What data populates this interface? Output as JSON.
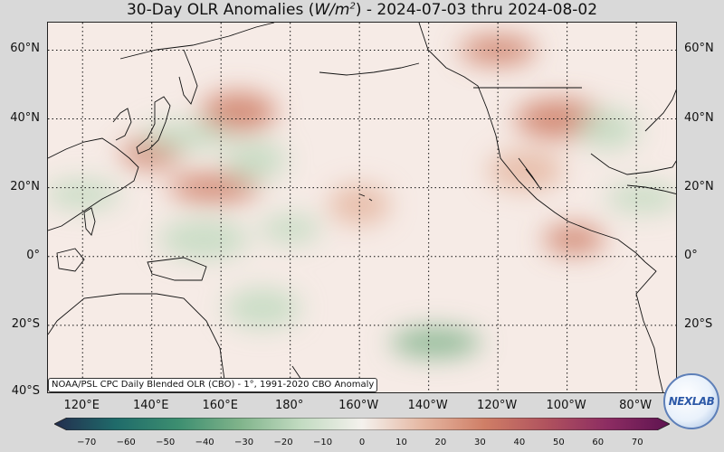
{
  "title": {
    "prefix": "30-Day OLR Anomalies (",
    "unit_base": "W/m",
    "unit_exp": "2",
    "suffix": ") - 2024-07-03 thru 2024-08-02"
  },
  "map": {
    "lat_labels": [
      "60°N",
      "40°N",
      "20°N",
      "0°",
      "20°S",
      "40°S"
    ],
    "lon_labels": [
      "120°E",
      "140°E",
      "160°E",
      "180°",
      "160°W",
      "140°W",
      "120°W",
      "100°W",
      "80°W"
    ],
    "anomaly_features": [
      {
        "lon": 140,
        "lat": 30,
        "value": 30
      },
      {
        "lon": 165,
        "lat": 42,
        "value": 25
      },
      {
        "lon": 158,
        "lat": 20,
        "value": 25
      },
      {
        "lon": 200,
        "lat": 15,
        "value": 20
      },
      {
        "lon": 240,
        "lat": 60,
        "value": 25
      },
      {
        "lon": 258,
        "lat": 40,
        "value": 30
      },
      {
        "lon": 262,
        "lat": 5,
        "value": 25
      },
      {
        "lon": 248,
        "lat": 25,
        "value": 15
      },
      {
        "lon": 150,
        "lat": 35,
        "value": -20
      },
      {
        "lon": 170,
        "lat": 28,
        "value": -20
      },
      {
        "lon": 120,
        "lat": 18,
        "value": -20
      },
      {
        "lon": 155,
        "lat": 5,
        "value": -15
      },
      {
        "lon": 180,
        "lat": 8,
        "value": -15
      },
      {
        "lon": 172,
        "lat": -15,
        "value": -15
      },
      {
        "lon": 222,
        "lat": -25,
        "value": -30
      },
      {
        "lon": 272,
        "lat": 37,
        "value": -20
      },
      {
        "lon": 282,
        "lat": 17,
        "value": -15
      }
    ]
  },
  "credit": "NOAA/PSL CPC Daily Blended OLR (CBO) - 1°, 1991-2020 CBO Anomaly",
  "colorbar": {
    "ticks": [
      "−70",
      "−60",
      "−50",
      "−40",
      "−30",
      "−20",
      "−10",
      "0",
      "10",
      "20",
      "30",
      "40",
      "50",
      "60",
      "70"
    ],
    "min": -75,
    "max": 75,
    "colors_negative": [
      "#232d4e",
      "#1f6b6a",
      "#3c8e70",
      "#7fb38a",
      "#c2dbc1",
      "#f4f1ed"
    ],
    "colors_positive": [
      "#f4f1ed",
      "#e5b6a1",
      "#cf7e66",
      "#b0525e",
      "#8c2c62",
      "#5e1350"
    ]
  },
  "logo": {
    "text": "NEXLAB"
  }
}
